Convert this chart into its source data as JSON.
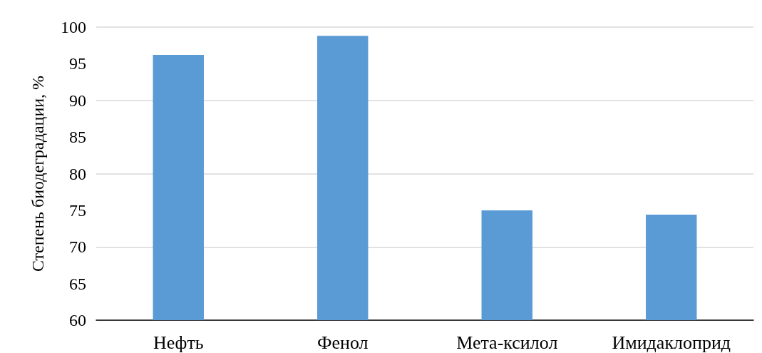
{
  "chart_data": {
    "type": "bar",
    "ylabel": "Степень биодеградации, %",
    "categories": [
      "Нефть",
      "Фенол",
      "Мета-ксилол",
      "Имидаклоприд"
    ],
    "values": [
      96.2,
      98.8,
      75.0,
      74.4
    ],
    "color": "#5b9bd5",
    "ylim": [
      60,
      100
    ],
    "yticks": [
      60,
      65,
      70,
      75,
      80,
      85,
      90,
      95,
      100
    ],
    "grid": "y"
  }
}
